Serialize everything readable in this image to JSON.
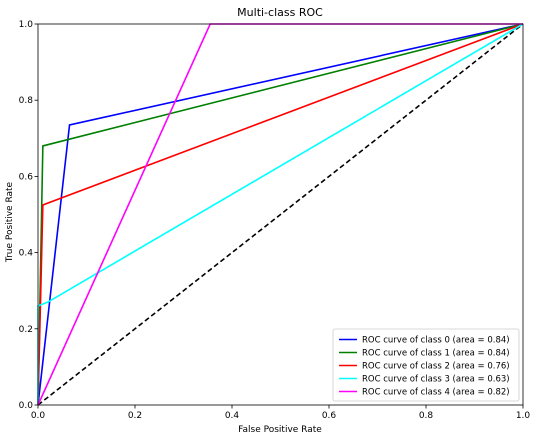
{
  "chart_data": {
    "type": "line",
    "title": "Multi-class ROC",
    "xlabel": "False Positive Rate",
    "ylabel": "True Positive Rate",
    "xlim": [
      0.0,
      1.0
    ],
    "ylim": [
      0.0,
      1.0
    ],
    "xticks": [
      "0.0",
      "0.2",
      "0.4",
      "0.6",
      "0.8",
      "1.0"
    ],
    "yticks": [
      "0.0",
      "0.2",
      "0.4",
      "0.6",
      "0.8",
      "1.0"
    ],
    "grid": false,
    "legend_position": "lower right",
    "series": [
      {
        "name": "ROC curve of class 0 (area = 0.84)",
        "color": "#0000ff",
        "x": [
          0.0,
          0.065,
          1.0
        ],
        "y": [
          0.0,
          0.735,
          1.0
        ]
      },
      {
        "name": "ROC curve of class 1 (area = 0.84)",
        "color": "#008000",
        "x": [
          0.0,
          0.01,
          1.0
        ],
        "y": [
          0.0,
          0.68,
          1.0
        ]
      },
      {
        "name": "ROC curve of class 2 (area = 0.76)",
        "color": "#ff0000",
        "x": [
          0.0,
          0.01,
          1.0
        ],
        "y": [
          0.0,
          0.525,
          1.0
        ]
      },
      {
        "name": "ROC curve of class 3 (area = 0.63)",
        "color": "#00ffff",
        "x": [
          0.0,
          0.0,
          0.02,
          1.0
        ],
        "y": [
          0.0,
          0.26,
          0.27,
          1.0
        ]
      },
      {
        "name": "ROC curve of class 4 (area = 0.82)",
        "color": "#ff00ff",
        "x": [
          0.0,
          0.355,
          1.0
        ],
        "y": [
          0.0,
          1.0,
          1.0
        ]
      }
    ],
    "reference_line": {
      "x": [
        0.0,
        1.0
      ],
      "y": [
        0.0,
        1.0
      ],
      "color": "#000000",
      "style": "dashed"
    }
  }
}
